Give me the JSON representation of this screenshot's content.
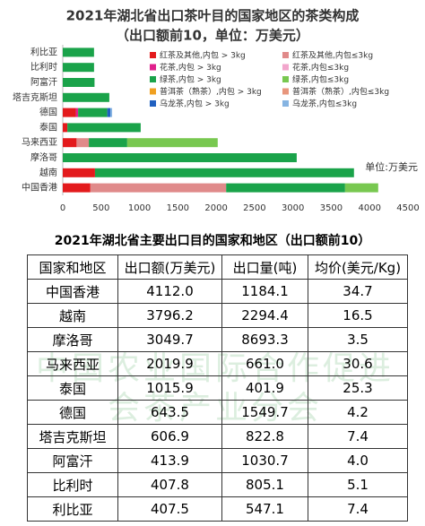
{
  "chart_data": {
    "type": "stacked-bar-horizontal",
    "title": "2021年湖北省出口茶叶目的国家地区的茶类构成",
    "subtitle": "（出口额前10，单位：万美元）",
    "unit_note": "单位:万美元",
    "categories": [
      "利比亚",
      "比利时",
      "阿富汗",
      "塔吉克斯坦",
      "德国",
      "泰国",
      "马来西亚",
      "摩洛哥",
      "越南",
      "中国香港"
    ],
    "series": [
      {
        "name": "红茶及其他,内包 > 3kg",
        "color": "#e31a1c",
        "values": [
          0,
          0,
          0,
          0,
          170,
          60,
          180,
          0,
          420,
          360
        ]
      },
      {
        "name": "红茶及其他,内包≤3kg",
        "color": "#e08a8a",
        "values": [
          0,
          0,
          0,
          0,
          0,
          0,
          160,
          0,
          0,
          1770
        ]
      },
      {
        "name": "花茶,内包 > 3kg",
        "color": "#e0208c",
        "values": [
          0,
          0,
          0,
          0,
          30,
          0,
          0,
          0,
          0,
          0
        ]
      },
      {
        "name": "花茶,内包≤3kg",
        "color": "#f2a6cc",
        "values": [
          0,
          0,
          0,
          0,
          0,
          0,
          0,
          0,
          0,
          0
        ]
      },
      {
        "name": "绿茶,内包 > 3kg",
        "color": "#1aa34a",
        "values": [
          407.5,
          407.8,
          413.9,
          606.9,
          380,
          955.9,
          500,
          3049.7,
          3376.2,
          1550
        ]
      },
      {
        "name": "绿茶,内包≤3kg",
        "color": "#78c850",
        "values": [
          0,
          0,
          0,
          0,
          0,
          0,
          1179.9,
          0,
          0,
          432
        ]
      },
      {
        "name": "普洱茶（熟茶）,内包 > 3kg",
        "color": "#f0a020",
        "values": [
          0,
          0,
          0,
          0,
          0,
          0,
          0,
          0,
          0,
          0
        ]
      },
      {
        "name": "普洱茶（熟茶）,内包≤3kg",
        "color": "#e8967c",
        "values": [
          0,
          0,
          0,
          0,
          0,
          0,
          0,
          0,
          0,
          0
        ]
      },
      {
        "name": "乌龙茶,内包 > 3kg",
        "color": "#2060c0",
        "values": [
          0,
          0,
          0,
          0,
          40,
          0,
          0,
          0,
          0,
          0
        ]
      },
      {
        "name": "乌龙茶,内包≤3kg",
        "color": "#86b4e2",
        "values": [
          0,
          0,
          0,
          0,
          23.5,
          0,
          0,
          0,
          0,
          0
        ]
      }
    ],
    "xlim": [
      0,
      4500
    ],
    "xticks": [
      0,
      500,
      1000,
      1500,
      2000,
      2500,
      3000,
      3500,
      4000,
      4500
    ],
    "grid": false
  },
  "table": {
    "title": "2021年湖北省主要出口目的国家和地区（出口额前10）",
    "header": [
      "国家和地区",
      "出口额(万美元)",
      "出口量(吨)",
      "均价(美元/Kg)"
    ],
    "rows": [
      [
        "中国香港",
        "4112.0",
        "1184.1",
        "34.7"
      ],
      [
        "越南",
        "3796.2",
        "2294.4",
        "16.5"
      ],
      [
        "摩洛哥",
        "3049.7",
        "8693.3",
        "3.5"
      ],
      [
        "马来西亚",
        "2019.9",
        "661.0",
        "30.6"
      ],
      [
        "泰国",
        "1015.9",
        "401.9",
        "25.3"
      ],
      [
        "德国",
        "643.5",
        "1549.7",
        "4.2"
      ],
      [
        "塔吉克斯坦",
        "606.9",
        "822.8",
        "7.4"
      ],
      [
        "阿富汗",
        "413.9",
        "1030.7",
        "4.0"
      ],
      [
        "比利时",
        "407.8",
        "805.1",
        "5.1"
      ],
      [
        "利比亚",
        "407.5",
        "547.1",
        "7.4"
      ]
    ]
  },
  "watermark": "中国农业国际合作促进会茶产业分会"
}
